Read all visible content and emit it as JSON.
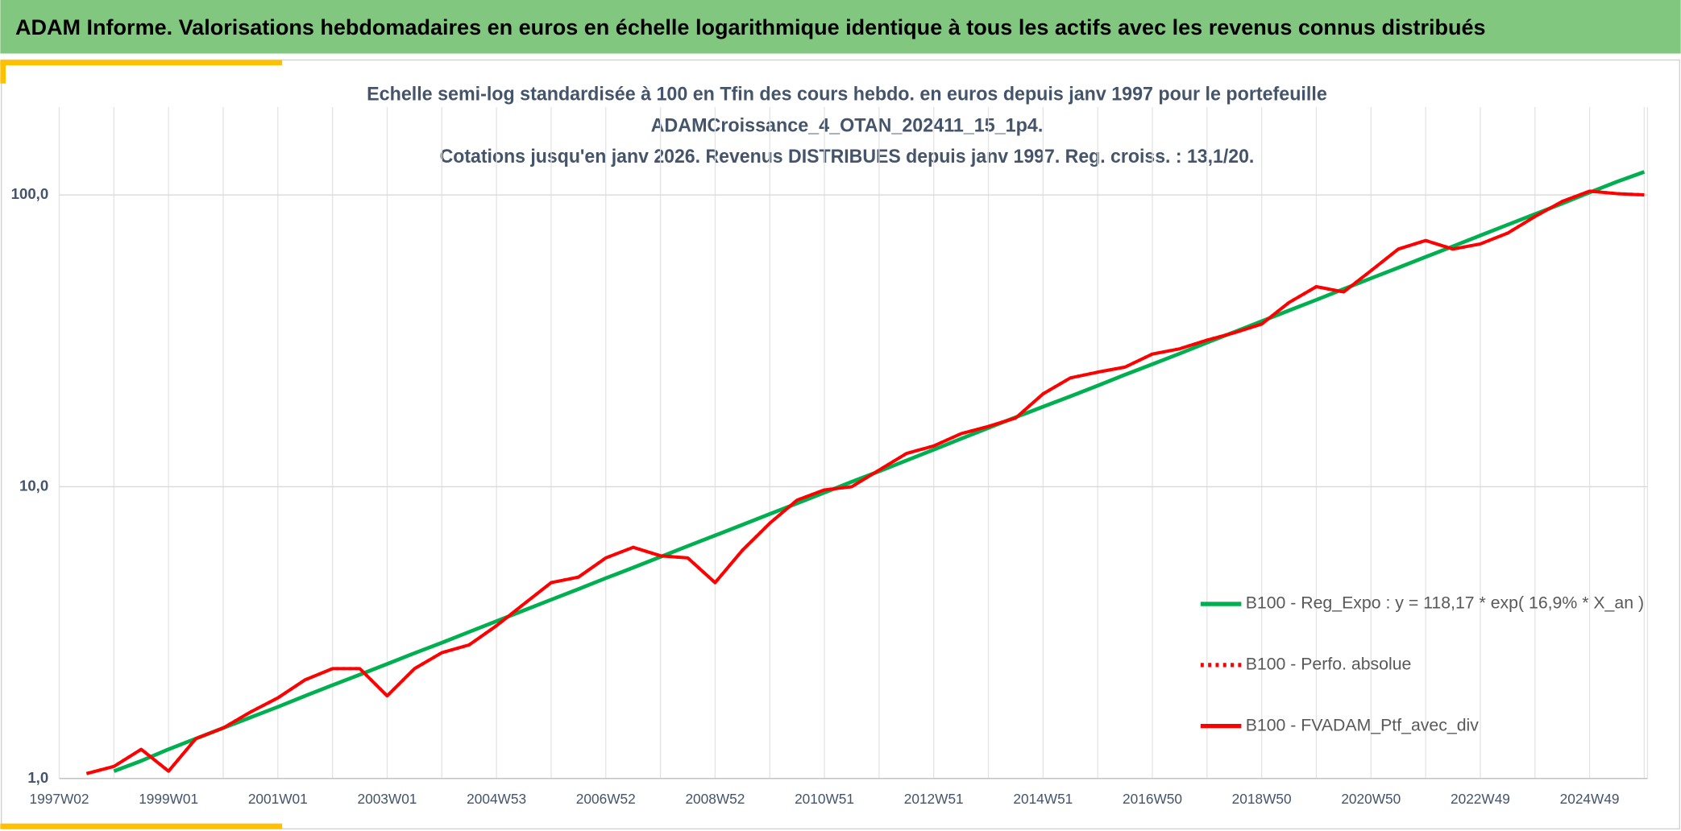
{
  "chart_data": {
    "type": "line",
    "header": "ADAM Informe. Valorisations hebdomadaires en euros en échelle logarithmique identique à tous les actifs avec les revenus connus distribués",
    "title_lines": [
      "Echelle semi-log standardisée à 100 en Tfin des cours hebdo. en euros depuis janv 1997 pour le portefeuille",
      "ADAMCroissance_4_OTAN_202411_15_1p4.",
      "Cotations jusqu'en janv 2026. Revenus DISTRIBUES depuis janv 1997. Reg. croiss. : 13,1/20."
    ],
    "categories": [
      "1997W02",
      null,
      null,
      null,
      "1999W01",
      null,
      null,
      null,
      "2001W01",
      null,
      null,
      null,
      "2003W01",
      null,
      null,
      null,
      "2004W53",
      null,
      null,
      null,
      "2006W52",
      null,
      null,
      null,
      "2008W52",
      null,
      null,
      null,
      "2010W51",
      null,
      null,
      null,
      "2012W51",
      null,
      null,
      null,
      "2014W51",
      null,
      null,
      null,
      "2016W50",
      null,
      null,
      null,
      "2018W50",
      null,
      null,
      null,
      "2020W50",
      null,
      null,
      null,
      "2022W49",
      null,
      null,
      null,
      "2024W49",
      null,
      null
    ],
    "ylog": true,
    "ylim": [
      1,
      200
    ],
    "yticks": [
      {
        "value": 1,
        "label": "1,0"
      },
      {
        "value": 10,
        "label": "10,0"
      },
      {
        "value": 100,
        "label": "100,0"
      }
    ],
    "grid": true,
    "legend": "lower right",
    "series": [
      {
        "name": "B100 - Reg_Expo : y = 118,17 * exp( 16,9% *  X_an )",
        "color": "#00b050",
        "dash": "solid",
        "values": [
          null,
          null,
          1.06,
          1.15,
          1.26,
          1.37,
          1.49,
          1.62,
          1.76,
          1.92,
          2.09,
          2.27,
          2.47,
          2.69,
          2.92,
          3.18,
          3.46,
          3.77,
          4.1,
          4.46,
          4.86,
          5.28,
          5.75,
          6.26,
          6.81,
          7.41,
          8.06,
          8.77,
          9.55,
          10.4,
          11.3,
          12.3,
          13.4,
          14.6,
          15.9,
          17.3,
          18.8,
          20.4,
          22.2,
          24.2,
          26.3,
          28.6,
          31.2,
          33.9,
          36.9,
          40.2,
          43.7,
          47.6,
          51.8,
          56.3,
          61.3,
          66.7,
          72.6,
          79.0,
          85.9,
          93.5,
          102,
          111,
          120
        ]
      },
      {
        "name": "B100 - Perfo. absolue",
        "color": "#ff0000",
        "dash": "dotted",
        "values": [
          null,
          1.04,
          1.1,
          1.26,
          1.06,
          1.37,
          1.49,
          1.69,
          1.89,
          2.18,
          2.38,
          2.38,
          1.92,
          2.38,
          2.7,
          2.87,
          3.34,
          3.96,
          4.69,
          4.9,
          5.7,
          6.2,
          5.8,
          5.7,
          4.69,
          6.06,
          7.5,
          9.0,
          9.75,
          10.0,
          11.4,
          13.0,
          13.8,
          15.2,
          16.1,
          17.2,
          20.8,
          23.6,
          24.7,
          25.7,
          28.5,
          29.7,
          31.8,
          33.7,
          36.1,
          42.8,
          48.5,
          46.5,
          55.0,
          65.2,
          69.8,
          65.2,
          67.9,
          74.0,
          84.3,
          95.0,
          103,
          101,
          100
        ]
      },
      {
        "name": "B100 - FVADAM_Ptf_avec_div",
        "color": "#ff0000",
        "dash": "solid",
        "values": [
          null,
          1.04,
          1.1,
          1.26,
          1.06,
          1.37,
          1.49,
          1.69,
          1.89,
          2.18,
          2.38,
          2.38,
          1.92,
          2.38,
          2.7,
          2.87,
          3.34,
          3.96,
          4.69,
          4.9,
          5.7,
          6.2,
          5.8,
          5.7,
          4.69,
          6.06,
          7.5,
          9.0,
          9.75,
          10.0,
          11.4,
          13.0,
          13.8,
          15.2,
          16.1,
          17.2,
          20.8,
          23.6,
          24.7,
          25.7,
          28.5,
          29.7,
          31.8,
          33.7,
          36.1,
          42.8,
          48.5,
          46.5,
          55.0,
          65.2,
          69.8,
          65.2,
          67.9,
          74.0,
          84.3,
          95.0,
          103,
          101,
          100
        ]
      }
    ]
  }
}
